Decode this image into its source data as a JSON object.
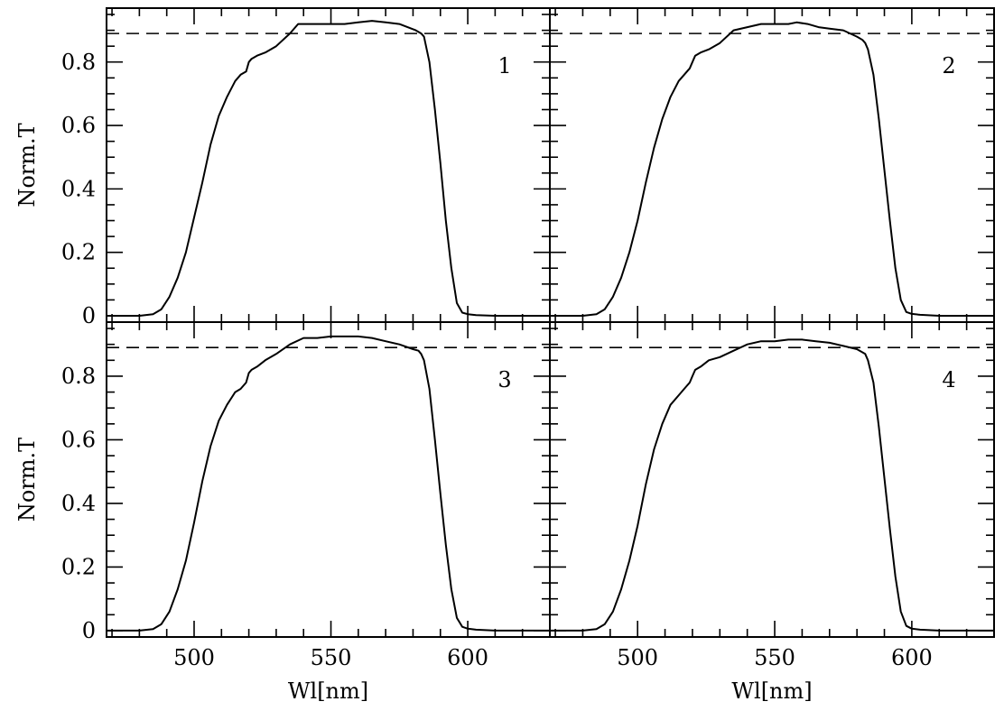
{
  "chart_data": [
    {
      "type": "line",
      "panel_label": "1",
      "ylabel": "Norm.T",
      "xlabel": "",
      "xlim": [
        468,
        630
      ],
      "ylim": [
        -0.02,
        0.97
      ],
      "x_ticks": [
        500,
        550,
        600
      ],
      "y_ticks": [
        0,
        0.2,
        0.4,
        0.6,
        0.8
      ],
      "reference_line_y": 0.89,
      "series": [
        {
          "x": [
            468,
            480,
            485,
            488,
            491,
            494,
            497,
            500,
            503,
            506,
            509,
            512,
            515,
            517,
            519,
            520,
            521,
            523,
            526,
            530,
            535,
            538,
            542,
            546,
            550,
            555,
            560,
            565,
            570,
            575,
            578,
            581,
            583,
            584,
            586,
            588,
            590,
            592,
            594,
            596,
            598,
            600,
            603,
            610,
            630
          ],
          "y": [
            0,
            0,
            0.005,
            0.02,
            0.06,
            0.12,
            0.2,
            0.31,
            0.42,
            0.54,
            0.63,
            0.69,
            0.74,
            0.76,
            0.77,
            0.8,
            0.81,
            0.82,
            0.83,
            0.85,
            0.89,
            0.92,
            0.92,
            0.92,
            0.92,
            0.92,
            0.925,
            0.93,
            0.925,
            0.92,
            0.91,
            0.9,
            0.89,
            0.88,
            0.8,
            0.65,
            0.48,
            0.3,
            0.15,
            0.04,
            0.01,
            0.005,
            0.002,
            0,
            0
          ]
        }
      ]
    },
    {
      "type": "line",
      "panel_label": "2",
      "ylabel": "",
      "xlabel": "",
      "xlim": [
        468,
        630
      ],
      "ylim": [
        -0.02,
        0.97
      ],
      "x_ticks": [
        500,
        550,
        600
      ],
      "y_ticks": [
        0,
        0.2,
        0.4,
        0.6,
        0.8
      ],
      "reference_line_y": 0.89,
      "series": [
        {
          "x": [
            468,
            480,
            485,
            488,
            491,
            494,
            497,
            500,
            503,
            506,
            509,
            512,
            515,
            517,
            519,
            520,
            521,
            523,
            526,
            530,
            535,
            540,
            545,
            550,
            555,
            558,
            562,
            566,
            570,
            575,
            580,
            582,
            583,
            584,
            586,
            588,
            590,
            592,
            594,
            596,
            598,
            600,
            603,
            610,
            630
          ],
          "y": [
            0,
            0,
            0.005,
            0.02,
            0.06,
            0.12,
            0.2,
            0.3,
            0.42,
            0.53,
            0.62,
            0.69,
            0.74,
            0.76,
            0.78,
            0.8,
            0.82,
            0.83,
            0.84,
            0.86,
            0.9,
            0.91,
            0.92,
            0.92,
            0.92,
            0.925,
            0.92,
            0.91,
            0.905,
            0.9,
            0.88,
            0.87,
            0.86,
            0.84,
            0.76,
            0.62,
            0.46,
            0.3,
            0.15,
            0.05,
            0.012,
            0.006,
            0.003,
            0,
            0
          ]
        }
      ]
    },
    {
      "type": "line",
      "panel_label": "3",
      "ylabel": "Norm.T",
      "xlabel": "Wl[nm]",
      "xlim": [
        468,
        630
      ],
      "ylim": [
        -0.02,
        0.97
      ],
      "x_ticks": [
        500,
        550,
        600
      ],
      "y_ticks": [
        0,
        0.2,
        0.4,
        0.6,
        0.8
      ],
      "reference_line_y": 0.89,
      "series": [
        {
          "x": [
            468,
            480,
            485,
            488,
            491,
            494,
            497,
            500,
            503,
            506,
            509,
            512,
            515,
            517,
            519,
            520,
            521,
            523,
            526,
            530,
            535,
            540,
            545,
            550,
            555,
            560,
            565,
            570,
            575,
            580,
            582,
            583,
            584,
            586,
            588,
            590,
            592,
            594,
            596,
            598,
            600,
            603,
            610,
            630
          ],
          "y": [
            0,
            0,
            0.005,
            0.02,
            0.06,
            0.13,
            0.22,
            0.34,
            0.47,
            0.58,
            0.66,
            0.71,
            0.75,
            0.76,
            0.78,
            0.81,
            0.82,
            0.83,
            0.85,
            0.87,
            0.9,
            0.92,
            0.92,
            0.925,
            0.925,
            0.925,
            0.92,
            0.91,
            0.9,
            0.885,
            0.88,
            0.87,
            0.85,
            0.76,
            0.6,
            0.43,
            0.27,
            0.13,
            0.04,
            0.012,
            0.006,
            0.003,
            0,
            0
          ]
        }
      ]
    },
    {
      "type": "line",
      "panel_label": "4",
      "ylabel": "",
      "xlabel": "Wl[nm]",
      "xlim": [
        468,
        630
      ],
      "ylim": [
        -0.02,
        0.97
      ],
      "x_ticks": [
        500,
        550,
        600
      ],
      "y_ticks": [
        0,
        0.2,
        0.4,
        0.6,
        0.8
      ],
      "reference_line_y": 0.89,
      "series": [
        {
          "x": [
            468,
            480,
            485,
            488,
            491,
            494,
            497,
            500,
            503,
            506,
            509,
            512,
            515,
            517,
            519,
            520,
            521,
            523,
            526,
            530,
            535,
            540,
            545,
            550,
            555,
            560,
            565,
            570,
            575,
            580,
            583,
            584,
            586,
            588,
            590,
            592,
            594,
            596,
            598,
            600,
            603,
            610,
            630
          ],
          "y": [
            0,
            0,
            0.005,
            0.02,
            0.06,
            0.13,
            0.22,
            0.33,
            0.46,
            0.57,
            0.65,
            0.71,
            0.74,
            0.76,
            0.78,
            0.8,
            0.82,
            0.83,
            0.85,
            0.86,
            0.88,
            0.9,
            0.91,
            0.91,
            0.915,
            0.915,
            0.91,
            0.905,
            0.895,
            0.885,
            0.87,
            0.85,
            0.78,
            0.64,
            0.48,
            0.32,
            0.17,
            0.06,
            0.015,
            0.006,
            0.003,
            0,
            0
          ]
        }
      ]
    }
  ]
}
